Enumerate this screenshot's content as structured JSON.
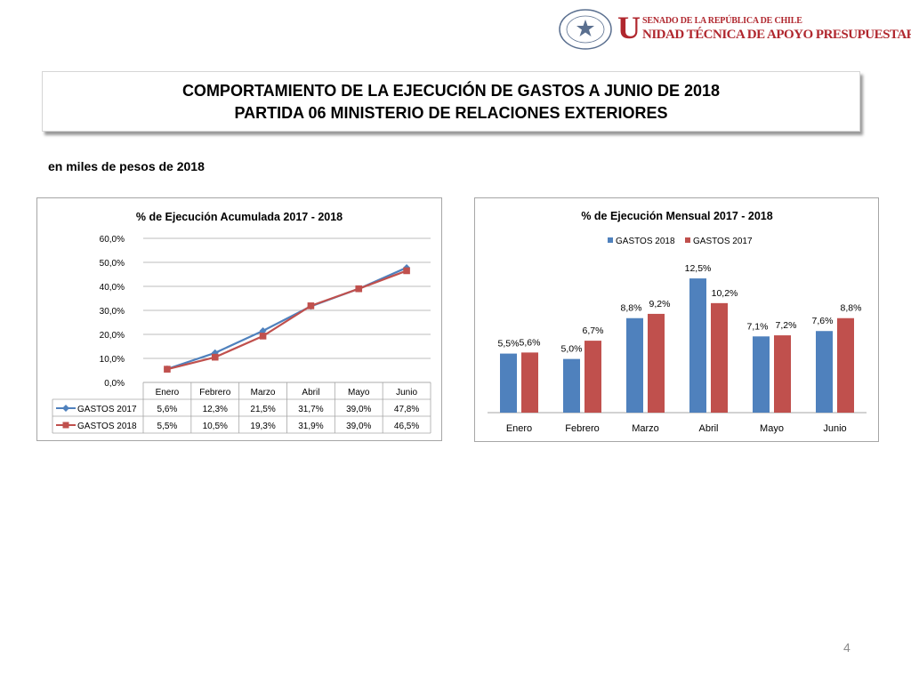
{
  "header": {
    "seal_text": "REPÚBLICA DE CHILE",
    "seal_bottom": "SENADO",
    "brand_line1": "SENADO DE LA REPÚBLICA DE CHILE",
    "brand_initial": "U",
    "brand_line2": "NIDAD TÉCNICA DE APOYO PRESUPUESTARIO"
  },
  "title": {
    "line1": "COMPORTAMIENTO DE LA EJECUCIÓN DE GASTOS A JUNIO DE 2018",
    "line2": "PARTIDA 06 MINISTERIO DE RELACIONES EXTERIORES"
  },
  "subtitle": "en miles de pesos de 2018",
  "page_number": "4",
  "colors": {
    "blue": "#4f81bd",
    "red": "#c0504d"
  },
  "chart_data": [
    {
      "type": "line",
      "title": "% de Ejecución Acumulada 2017 - 2018",
      "categories": [
        "Enero",
        "Febrero",
        "Marzo",
        "Abril",
        "Mayo",
        "Junio"
      ],
      "ylim": [
        0,
        60
      ],
      "yticks": [
        "0,0%",
        "10,0%",
        "20,0%",
        "30,0%",
        "40,0%",
        "50,0%",
        "60,0%"
      ],
      "grid": true,
      "legend": "data-table",
      "series": [
        {
          "name": "GASTOS 2017",
          "color": "#4f81bd",
          "marker": "diamond",
          "values": [
            5.6,
            12.3,
            21.5,
            31.7,
            39.0,
            47.8
          ],
          "labels": [
            "5,6%",
            "12,3%",
            "21,5%",
            "31,7%",
            "39,0%",
            "47,8%"
          ]
        },
        {
          "name": "GASTOS 2018",
          "color": "#c0504d",
          "marker": "square",
          "values": [
            5.5,
            10.5,
            19.3,
            31.9,
            39.0,
            46.5
          ],
          "labels": [
            "5,5%",
            "10,5%",
            "19,3%",
            "31,9%",
            "39,0%",
            "46,5%"
          ]
        }
      ]
    },
    {
      "type": "bar",
      "title": "% de Ejecución Mensual 2017 - 2018",
      "categories": [
        "Enero",
        "Febrero",
        "Marzo",
        "Abril",
        "Mayo",
        "Junio"
      ],
      "ylim": [
        0,
        13.5
      ],
      "grid": false,
      "legend": "top",
      "series": [
        {
          "name": "GASTOS 2018",
          "color": "#4f81bd",
          "values": [
            5.5,
            5.0,
            8.8,
            12.5,
            7.1,
            7.6
          ],
          "labels": [
            "5,5%",
            "5,0%",
            "8,8%",
            "12,5%",
            "7,1%",
            "7,6%"
          ]
        },
        {
          "name": "GASTOS 2017",
          "color": "#c0504d",
          "values": [
            5.6,
            6.7,
            9.2,
            10.2,
            7.2,
            8.8
          ],
          "labels": [
            "5,6%",
            "6,7%",
            "9,2%",
            "10,2%",
            "7,2%",
            "8,8%"
          ]
        }
      ]
    }
  ]
}
